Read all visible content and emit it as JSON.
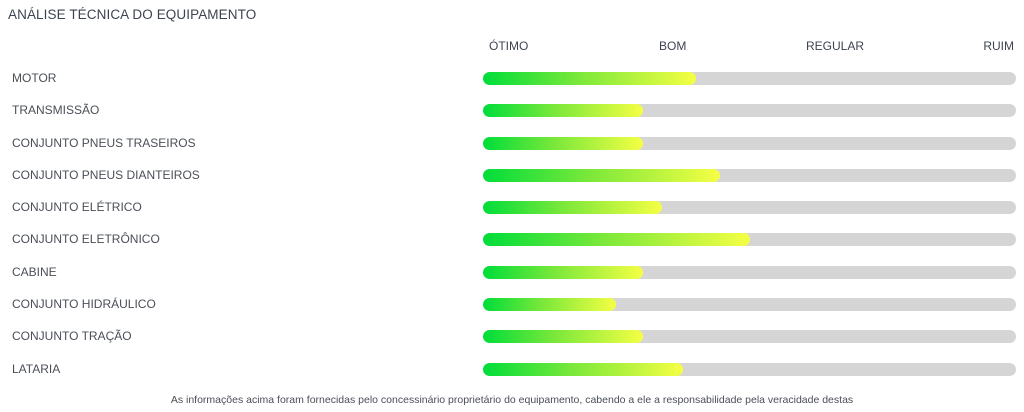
{
  "title": "ANÁLISE TÉCNICA DO EQUIPAMENTO",
  "scale_labels": [
    "ÓTIMO",
    "BOM",
    "REGULAR",
    "RUIM"
  ],
  "gradient_colors": {
    "start": "#00dd3a",
    "mid": "#7be83a",
    "end": "#f5ff44",
    "track": "#d5d5d5"
  },
  "items": [
    {
      "label": "MOTOR",
      "level": 0.4
    },
    {
      "label": "TRANSMISSÃO",
      "level": 0.3
    },
    {
      "label": "CONJUNTO PNEUS TRASEIROS",
      "level": 0.3
    },
    {
      "label": "CONJUNTO PNEUS DIANTEIROS",
      "level": 0.445
    },
    {
      "label": "CONJUNTO ELÉTRICO",
      "level": 0.335
    },
    {
      "label": "CONJUNTO ELETRÔNICO",
      "level": 0.5
    },
    {
      "label": "CABINE",
      "level": 0.3
    },
    {
      "label": "CONJUNTO HIDRÁULICO",
      "level": 0.25
    },
    {
      "label": "CONJUNTO TRAÇÃO",
      "level": 0.3
    },
    {
      "label": "LATARIA",
      "level": 0.375
    }
  ],
  "footer": "As informações acima foram fornecidas pelo concessinário proprietário do equipamento, cabendo a ele a responsabilidade pela veracidade destas"
}
